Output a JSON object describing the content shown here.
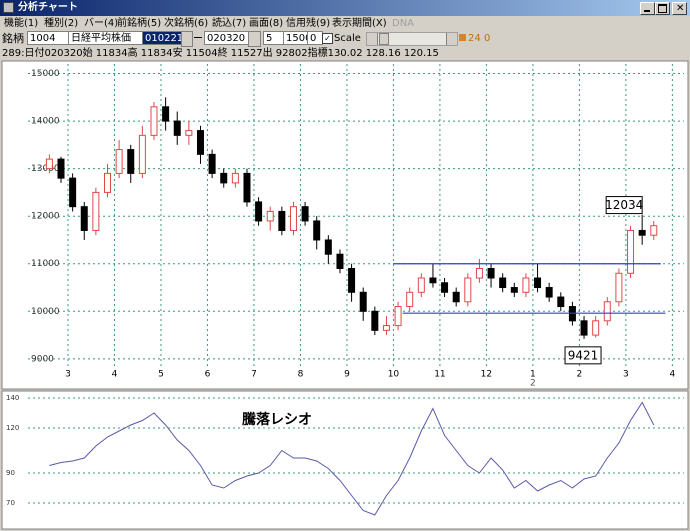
{
  "window": {
    "title": "分析チャート"
  },
  "menu": [
    "機能(1)",
    "種別(2)",
    "バー(4)",
    "前銘柄(5)",
    "次銘柄(6)",
    "読込(7)",
    "画面(8)",
    "信用残(9)",
    "表示期間(X)"
  ],
  "menu_disabled": "DNA",
  "toolbar": {
    "code_label": "銘柄",
    "code": "1004",
    "name": "日経平均株価",
    "from": "010221",
    "to": "020320",
    "n1": "5",
    "n2": "1500",
    "n3": "0",
    "scale": "Scale",
    "v1": "24",
    "v2": "0"
  },
  "info": "289:日付020320始 11834高 11834安 11504終 11527出 92802指標130.02   128.16   120.15",
  "chart_data": [
    {
      "type": "candlestick",
      "x": [
        2.6,
        2.85,
        3.1,
        3.35,
        3.6,
        3.85,
        4.1,
        4.35,
        4.6,
        4.85,
        5.1,
        5.35,
        5.6,
        5.85,
        6.1,
        6.35,
        6.6,
        6.85,
        7.1,
        7.35,
        7.6,
        7.85,
        8.1,
        8.35,
        8.6,
        8.85,
        9.1,
        9.35,
        9.6,
        9.85,
        10.1,
        10.35,
        10.6,
        10.85,
        11.1,
        11.35,
        11.6,
        11.85,
        12.1,
        12.35,
        12.6,
        12.85,
        13.1,
        13.35,
        13.6,
        13.85,
        14.1,
        14.35,
        14.6,
        14.85,
        15.1,
        15.35,
        15.6
      ],
      "open": [
        13000,
        13200,
        12800,
        12200,
        11700,
        12500,
        12900,
        13400,
        12900,
        13700,
        14300,
        14000,
        13700,
        13800,
        13300,
        12900,
        12700,
        12900,
        12300,
        11900,
        12100,
        11700,
        12200,
        11900,
        11500,
        11200,
        10900,
        10400,
        10000,
        9600,
        9700,
        10100,
        10400,
        10700,
        10600,
        10400,
        10200,
        10700,
        10900,
        10700,
        10500,
        10400,
        10700,
        10500,
        10300,
        10100,
        9800,
        9500,
        9800,
        10200,
        10800,
        11700,
        11600
      ],
      "close": [
        13200,
        12800,
        12200,
        11700,
        12500,
        12900,
        13400,
        12900,
        13700,
        14300,
        14000,
        13700,
        13800,
        13300,
        12900,
        12700,
        12900,
        12300,
        11900,
        12100,
        11700,
        12200,
        11900,
        11500,
        11200,
        10900,
        10400,
        10000,
        9600,
        9700,
        10100,
        10400,
        10700,
        10600,
        10400,
        10200,
        10700,
        10900,
        10700,
        10500,
        10400,
        10700,
        10500,
        10300,
        10100,
        9800,
        9500,
        9800,
        10200,
        10800,
        11700,
        11600,
        11800
      ],
      "high": [
        13300,
        13250,
        12900,
        12300,
        12600,
        13100,
        13600,
        13500,
        13900,
        14400,
        14500,
        14200,
        14000,
        13900,
        13400,
        13000,
        13000,
        13000,
        12400,
        12200,
        12200,
        12300,
        12300,
        12000,
        11600,
        11300,
        11000,
        10500,
        10100,
        9900,
        10200,
        10500,
        10800,
        11000,
        10700,
        10500,
        10800,
        11100,
        11000,
        10800,
        10600,
        10800,
        11000,
        10600,
        10400,
        10200,
        9900,
        9900,
        10300,
        10900,
        11800,
        12034,
        11900
      ],
      "low": [
        12900,
        12700,
        12100,
        11500,
        11600,
        12400,
        12800,
        12700,
        12800,
        13600,
        13800,
        13500,
        13500,
        13100,
        12800,
        12600,
        12600,
        12200,
        11800,
        11700,
        11600,
        11600,
        11800,
        11300,
        11000,
        10800,
        10200,
        9800,
        9500,
        9500,
        9600,
        10000,
        10300,
        10500,
        10300,
        10100,
        10100,
        10600,
        10500,
        10400,
        10300,
        10300,
        10400,
        10200,
        10000,
        9700,
        9421,
        9450,
        9700,
        10100,
        10700,
        11400,
        11500
      ],
      "up_color": "#e04848",
      "down_color": "#000000",
      "xlim": [
        2.14,
        16.25
      ],
      "xticks": [
        3,
        4,
        5,
        6,
        7,
        8,
        9,
        10,
        11,
        12,
        {
          "value": 13,
          "label": "1"
        },
        {
          "value": 14,
          "label": "2"
        },
        {
          "value": 15,
          "label": "3"
        },
        {
          "value": 16,
          "label": "4"
        }
      ],
      "x_sublabels": [
        {
          "value": 13,
          "label": "2"
        }
      ],
      "ylim": [
        8850,
        15200
      ],
      "yticks": [
        9000,
        10000,
        11000,
        12000,
        13000,
        14000,
        15000
      ],
      "grid": true,
      "grid_color": "#3a9a7a",
      "hlines": [
        {
          "y": 11000,
          "x": [
            10.0,
            15.75
          ],
          "color": "#3838d8"
        },
        {
          "y": 9960,
          "x": [
            10.2,
            15.85
          ],
          "color": "#3838d8"
        }
      ],
      "annotations": [
        {
          "x": 15.35,
          "y": 12034,
          "position": "above"
        },
        {
          "x": 14.1,
          "y": 9421,
          "position": "below"
        }
      ]
    },
    {
      "type": "line",
      "title": "騰落レシオ",
      "color": "#5a5aa8",
      "x": [
        2.6,
        2.85,
        3.1,
        3.35,
        3.6,
        3.85,
        4.1,
        4.35,
        4.6,
        4.85,
        5.1,
        5.35,
        5.6,
        5.85,
        6.1,
        6.35,
        6.6,
        6.85,
        7.1,
        7.35,
        7.6,
        7.85,
        8.1,
        8.35,
        8.6,
        8.85,
        9.1,
        9.35,
        9.6,
        9.85,
        10.1,
        10.35,
        10.6,
        10.85,
        11.1,
        11.35,
        11.6,
        11.85,
        12.1,
        12.35,
        12.6,
        12.85,
        13.1,
        13.35,
        13.6,
        13.85,
        14.1,
        14.35,
        14.6,
        14.85,
        15.1,
        15.35,
        15.6
      ],
      "values": [
        95,
        97,
        98,
        100,
        108,
        114,
        118,
        122,
        125,
        130,
        122,
        112,
        105,
        95,
        82,
        80,
        85,
        88,
        90,
        95,
        105,
        100,
        100,
        98,
        93,
        85,
        75,
        65,
        62,
        75,
        85,
        100,
        118,
        133,
        115,
        105,
        95,
        90,
        100,
        92,
        80,
        85,
        78,
        82,
        85,
        80,
        86,
        88,
        100,
        110,
        125,
        137,
        122
      ],
      "xlim": [
        2.14,
        16.25
      ],
      "ylim": [
        58.7,
        143.3
      ],
      "yticks": [
        70,
        90,
        120,
        140
      ],
      "grid": true,
      "grid_color": "#3a9a7a"
    }
  ]
}
